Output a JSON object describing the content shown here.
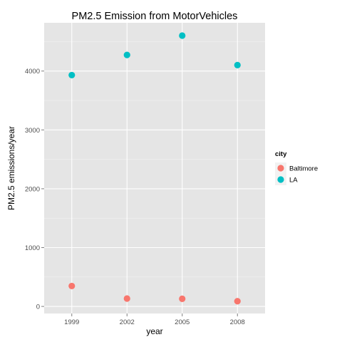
{
  "chart_data": {
    "type": "scatter",
    "title": "PM2.5 Emission from MotorVehicles",
    "xlabel": "year",
    "ylabel": "PM2.5 emissions/year",
    "x": [
      1999,
      2002,
      2005,
      2008
    ],
    "x_ticks": [
      "1999",
      "2002",
      "2005",
      "2008"
    ],
    "y_ticks": [
      0,
      1000,
      2000,
      3000,
      4000
    ],
    "xlim": [
      1997.5,
      2009.5
    ],
    "ylim": [
      -120,
      4820
    ],
    "grid": true,
    "legend": {
      "title": "city",
      "placement": "right"
    },
    "series": [
      {
        "name": "Baltimore",
        "color": "#f8766d",
        "values": [
          347,
          134,
          130,
          89
        ]
      },
      {
        "name": "LA",
        "color": "#00bfc4",
        "values": [
          3931,
          4274,
          4602,
          4101
        ]
      }
    ]
  },
  "colors": {
    "panel_background": "#e5e5e5",
    "grid_major": "#ffffff",
    "grid_minor": "#f2f2f2"
  }
}
